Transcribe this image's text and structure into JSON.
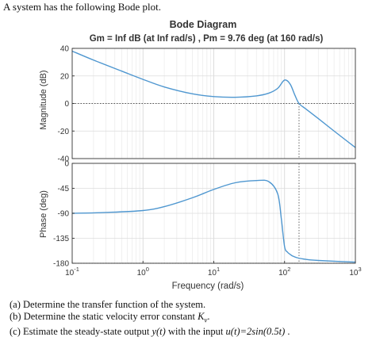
{
  "intro_text": "A system has the following Bode plot.",
  "chart_data": {
    "type": "line",
    "title": "Bode Diagram",
    "subtitle": "Gm = Inf dB (at Inf rad/s) ,  Pm = 9.76 deg (at 160 rad/s)",
    "xlabel": "Frequency  (rad/s)",
    "xscale": "log",
    "xlim": [
      0.1,
      1000
    ],
    "x_tick_labels": [
      {
        "base": "10",
        "exp": "-1"
      },
      {
        "base": "10",
        "exp": "0"
      },
      {
        "base": "10",
        "exp": "1"
      },
      {
        "base": "10",
        "exp": "2"
      },
      {
        "base": "10",
        "exp": "3"
      }
    ],
    "grid": true,
    "line_color": "#4f97d0",
    "panels": [
      {
        "ylabel": "Magnitude (dB)",
        "ylim": [
          -40,
          40
        ],
        "yticks": [
          -40,
          -20,
          0,
          20,
          40
        ],
        "x": [
          0.1,
          0.2,
          0.5,
          1,
          2,
          5,
          10,
          20,
          40,
          60,
          80,
          100,
          120,
          140,
          160,
          200,
          300,
          500,
          1000
        ],
        "y": [
          38,
          31.5,
          23.5,
          17.5,
          12,
          7,
          5,
          4.5,
          5.5,
          7.5,
          11,
          17,
          14,
          6,
          0,
          -4,
          -11,
          -20,
          -32
        ]
      },
      {
        "ylabel": "Phase (deg)",
        "ylim": [
          -180,
          0
        ],
        "yticks": [
          -180,
          -135,
          -90,
          -45,
          0
        ],
        "x": [
          0.1,
          0.3,
          1,
          2,
          5,
          10,
          20,
          40,
          60,
          80,
          90,
          100,
          110,
          120,
          130,
          150,
          200,
          300,
          1000
        ],
        "y": [
          -90,
          -88.5,
          -85,
          -78,
          -62,
          -47,
          -35,
          -31,
          -33,
          -55,
          -100,
          -150,
          -160,
          -164,
          -167,
          -170,
          -173,
          -175,
          -178
        ]
      }
    ],
    "margins": {
      "pm_freq": 160,
      "marker_style": "dotted"
    }
  },
  "questions": {
    "a": "(a) Determine the transfer function of the system.",
    "b_prefix": "(b) Determine the static velocity error constant ",
    "b_var": "K",
    "b_sub": "v",
    "b_suffix": ".",
    "c_prefix": "(c) Estimate the steady-state output ",
    "c_var": "y(t)",
    "c_mid": " with the input ",
    "c_input": "u(t)=2sin(0.5t)",
    "c_suffix": " ."
  }
}
